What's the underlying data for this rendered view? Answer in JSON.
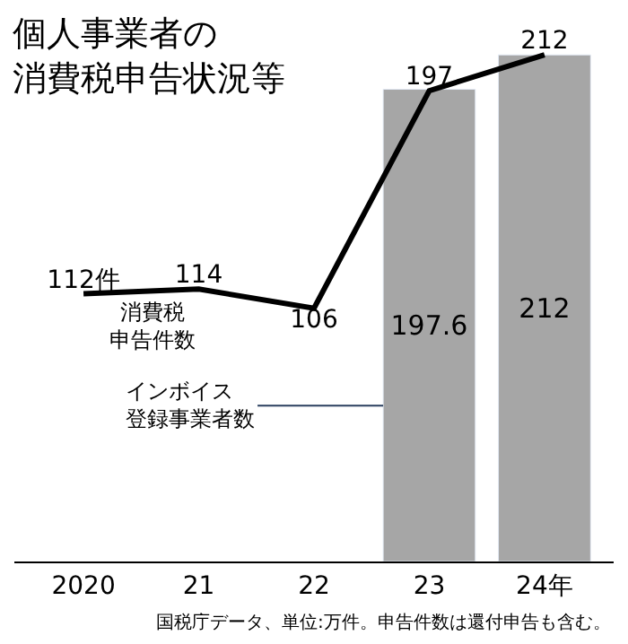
{
  "chart_data": {
    "type": "bar",
    "title": "個人事業者の消費税申告状況等",
    "categories": [
      "2020",
      "21",
      "22",
      "23",
      "24年"
    ],
    "series": [
      {
        "name": "消費税申告件数",
        "type": "line",
        "color": "#000000",
        "values": [
          112,
          114,
          106,
          197,
          212
        ],
        "value_labels": [
          "112件",
          "114",
          "106",
          "197",
          "212"
        ]
      },
      {
        "name": "インボイス登録事業者数",
        "color": "#a6a6a6",
        "values": [
          null,
          null,
          null,
          197.6,
          212
        ],
        "value_labels": [
          null,
          null,
          null,
          "197.6",
          "212"
        ]
      }
    ],
    "annotations": [
      "国税庁データ、単位:万件。申告件数は還付申告も含む。"
    ],
    "tick_labels": "x",
    "legend": false
  }
}
